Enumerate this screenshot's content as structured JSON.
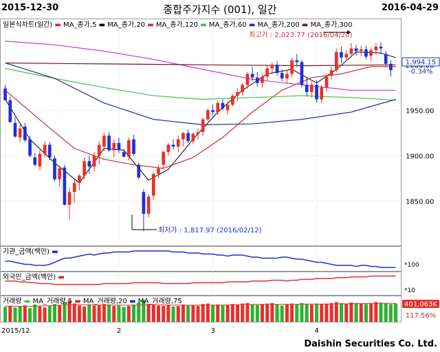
{
  "header": {
    "start_date": "2015-12-30",
    "end_date": "2016-04-29",
    "title": "종합주가지수 (001), 일간"
  },
  "footer": {
    "company": "Daishin Securities Co. Ltd."
  },
  "colors": {
    "up": "#e8302a",
    "down": "#1f2fd8",
    "ma5": "#000000",
    "ma20": "#d22b2b",
    "ma60": "#39c83c",
    "ma120": "#1c30a8",
    "ma200": "#d42fd3",
    "ma300": "#7a1a1a",
    "volume_up": "#e8302a",
    "volume_down": "#29b52e"
  },
  "price_panel": {
    "legend": [
      "일본식차트(일간)",
      "MA_종가,5",
      "MA_종가,20",
      "MA_종가,120",
      "MA_종가,60",
      "MA_종가,200",
      "MA_종가,300"
    ],
    "max_label": "최고가 : 2,023.77 (2016/04/20)",
    "min_label": "최저가 : 1,817.97 (2016/02/12)",
    "current_value": "1,994.15",
    "change_pct": "-0.34%"
  },
  "inst_panel": {
    "label": "기관_금액(백만)",
    "tick": "*100"
  },
  "foreign_panel": {
    "label": "외국인_금액(백만)",
    "tick": "*10"
  },
  "volume_panel": {
    "legend": [
      "거래량",
      "MA_거래량,5",
      "MA_거래량,20",
      "MA_거래량,75"
    ],
    "current_value": "401,063K",
    "ratio": "117.56%"
  },
  "chart_data": {
    "type": "candlestick",
    "title": "종합주가지수 (001), 일간",
    "y_ticks": [
      1850,
      1900,
      1950,
      2000
    ],
    "ylim": [
      1805,
      2035
    ],
    "x_tick_labels": [
      "2015/12",
      "2",
      "3",
      "4"
    ],
    "x_tick_index": [
      0,
      23,
      42,
      63
    ],
    "candles": [
      [
        1974,
        1978,
        1962,
        1961
      ],
      [
        1961,
        1965,
        1936,
        1937
      ],
      [
        1936,
        1942,
        1920,
        1921
      ],
      [
        1920,
        1935,
        1915,
        1930
      ],
      [
        1932,
        1936,
        1915,
        1917
      ],
      [
        1918,
        1922,
        1898,
        1900
      ],
      [
        1898,
        1903,
        1888,
        1890
      ],
      [
        1888,
        1906,
        1884,
        1902
      ],
      [
        1902,
        1916,
        1898,
        1912
      ],
      [
        1912,
        1915,
        1895,
        1898
      ],
      [
        1897,
        1900,
        1872,
        1874
      ],
      [
        1874,
        1889,
        1866,
        1886
      ],
      [
        1887,
        1890,
        1845,
        1846
      ],
      [
        1846,
        1865,
        1829,
        1860
      ],
      [
        1860,
        1874,
        1848,
        1870
      ],
      [
        1870,
        1880,
        1862,
        1878
      ],
      [
        1878,
        1898,
        1874,
        1894
      ],
      [
        1894,
        1900,
        1880,
        1888
      ],
      [
        1888,
        1904,
        1882,
        1900
      ],
      [
        1900,
        1916,
        1890,
        1912
      ],
      [
        1910,
        1925,
        1905,
        1922
      ],
      [
        1922,
        1926,
        1904,
        1906
      ],
      [
        1906,
        1918,
        1898,
        1914
      ],
      [
        1914,
        1920,
        1903,
        1906
      ],
      [
        1904,
        1907,
        1898,
        1899
      ],
      [
        1899,
        1920,
        1895,
        1917
      ],
      [
        1918,
        1923,
        1900,
        1902
      ],
      [
        1890,
        1892,
        1874,
        1876
      ],
      [
        1860,
        1863,
        1817,
        1836
      ],
      [
        1836,
        1858,
        1832,
        1855
      ],
      [
        1856,
        1882,
        1852,
        1880
      ],
      [
        1880,
        1890,
        1875,
        1886
      ],
      [
        1890,
        1906,
        1886,
        1904
      ],
      [
        1904,
        1914,
        1900,
        1912
      ],
      [
        1912,
        1918,
        1907,
        1910
      ],
      [
        1910,
        1922,
        1904,
        1918
      ],
      [
        1918,
        1926,
        1910,
        1925
      ],
      [
        1925,
        1929,
        1914,
        1916
      ],
      [
        1916,
        1926,
        1913,
        1924
      ],
      [
        1924,
        1930,
        1918,
        1926
      ],
      [
        1926,
        1942,
        1922,
        1940
      ],
      [
        1940,
        1952,
        1938,
        1950
      ],
      [
        1950,
        1956,
        1944,
        1948
      ],
      [
        1948,
        1960,
        1945,
        1958
      ],
      [
        1958,
        1962,
        1950,
        1952
      ],
      [
        1950,
        1960,
        1945,
        1956
      ],
      [
        1956,
        1968,
        1954,
        1966
      ],
      [
        1966,
        1974,
        1960,
        1970
      ],
      [
        1970,
        1980,
        1966,
        1978
      ],
      [
        1978,
        1992,
        1974,
        1990
      ],
      [
        1990,
        1998,
        1982,
        1986
      ],
      [
        1986,
        1992,
        1976,
        1980
      ],
      [
        1980,
        1990,
        1975,
        1987
      ],
      [
        1987,
        2000,
        1982,
        1996
      ],
      [
        1996,
        2003,
        1990,
        2000
      ],
      [
        2000,
        2004,
        1988,
        1991
      ],
      [
        1991,
        1995,
        1982,
        1985
      ],
      [
        1985,
        1994,
        1980,
        1990
      ],
      [
        1990,
        2008,
        1986,
        2005
      ],
      [
        2005,
        2012,
        1998,
        2003
      ],
      [
        2003,
        2005,
        1975,
        1978
      ],
      [
        1978,
        1985,
        1965,
        1970
      ],
      [
        1970,
        1982,
        1964,
        1978
      ],
      [
        1978,
        1983,
        1958,
        1962
      ],
      [
        1962,
        1978,
        1958,
        1975
      ],
      [
        1975,
        1990,
        1970,
        1987
      ],
      [
        1988,
        1998,
        1984,
        1994
      ],
      [
        1994,
        2018,
        1992,
        2014
      ],
      [
        2014,
        2020,
        2002,
        2008
      ],
      [
        2008,
        2016,
        2004,
        2012
      ],
      [
        2012,
        2024,
        2008,
        2018
      ],
      [
        2018,
        2022,
        2010,
        2015
      ],
      [
        2015,
        2021,
        2009,
        2017
      ],
      [
        2017,
        2021,
        2006,
        2009
      ],
      [
        2010,
        2019,
        2004,
        2016
      ],
      [
        2016,
        2024,
        2011,
        2020
      ],
      [
        2020,
        2025,
        2012,
        2018
      ],
      [
        2012,
        2015,
        1998,
        2001
      ],
      [
        2001,
        2005,
        1987,
        1994
      ]
    ],
    "ma_series": [
      {
        "name": "MA_종가,5",
        "color_key": "ma5",
        "points": [
          [
            0,
            1962
          ],
          [
            5,
            1918
          ],
          [
            10,
            1892
          ],
          [
            15,
            1870
          ],
          [
            20,
            1908
          ],
          [
            24,
            1906
          ],
          [
            29,
            1873
          ],
          [
            33,
            1885
          ],
          [
            38,
            1918
          ],
          [
            43,
            1948
          ],
          [
            48,
            1972
          ],
          [
            53,
            1990
          ],
          [
            58,
            1995
          ],
          [
            63,
            1980
          ],
          [
            67,
            1995
          ],
          [
            71,
            2014
          ],
          [
            76,
            2013
          ],
          [
            79,
            2008
          ]
        ]
      },
      {
        "name": "MA_종가,20",
        "color_key": "ma20",
        "points": [
          [
            0,
            1972
          ],
          [
            8,
            1935
          ],
          [
            14,
            1908
          ],
          [
            20,
            1896
          ],
          [
            26,
            1890
          ],
          [
            32,
            1886
          ],
          [
            38,
            1898
          ],
          [
            44,
            1920
          ],
          [
            50,
            1948
          ],
          [
            56,
            1972
          ],
          [
            62,
            1986
          ],
          [
            68,
            1990
          ],
          [
            74,
            1998
          ],
          [
            79,
            1998
          ]
        ]
      },
      {
        "name": "MA_종가,60",
        "color_key": "ma60",
        "points": [
          [
            0,
            1996
          ],
          [
            10,
            1985
          ],
          [
            20,
            1975
          ],
          [
            30,
            1966
          ],
          [
            40,
            1962
          ],
          [
            50,
            1964
          ],
          [
            60,
            1966
          ],
          [
            70,
            1964
          ],
          [
            79,
            1961
          ]
        ]
      },
      {
        "name": "MA_종가,120",
        "color_key": "ma120",
        "points": [
          [
            0,
            2002
          ],
          [
            10,
            1985
          ],
          [
            20,
            1958
          ],
          [
            30,
            1940
          ],
          [
            40,
            1934
          ],
          [
            50,
            1935
          ],
          [
            60,
            1940
          ],
          [
            70,
            1948
          ],
          [
            79,
            1962
          ]
        ]
      },
      {
        "name": "MA_종가,200",
        "color_key": "ma200",
        "points": [
          [
            0,
            2026
          ],
          [
            10,
            2022
          ],
          [
            20,
            2015
          ],
          [
            30,
            2006
          ],
          [
            40,
            1995
          ],
          [
            50,
            1984
          ],
          [
            60,
            1978
          ],
          [
            70,
            1972
          ],
          [
            79,
            1972
          ]
        ]
      },
      {
        "name": "MA_종가,300",
        "color_key": "ma300",
        "points": [
          [
            0,
            2002
          ],
          [
            20,
            2001
          ],
          [
            40,
            2000
          ],
          [
            60,
            1999
          ],
          [
            79,
            2000
          ]
        ]
      }
    ],
    "institution_series": [
      8,
      8,
      7,
      6,
      5,
      5,
      4,
      4,
      4,
      5,
      7,
      9,
      11,
      11,
      12,
      13,
      14,
      15,
      14,
      15,
      16,
      16,
      17,
      17,
      17,
      17,
      18,
      18,
      18,
      18,
      18,
      18,
      18,
      18,
      17,
      17,
      17,
      16,
      16,
      16,
      15,
      15,
      15,
      14,
      14,
      13,
      14,
      14,
      14,
      13,
      12,
      12,
      11,
      11,
      11,
      11,
      12,
      12,
      11,
      10,
      10,
      9,
      8,
      7,
      7,
      6,
      5,
      4,
      4,
      4,
      4,
      3,
      4,
      4,
      3,
      3,
      2,
      2,
      2,
      2
    ],
    "foreign_series": [
      14,
      14,
      14,
      13,
      13,
      12,
      12,
      11,
      11,
      11,
      10,
      10,
      10,
      10,
      10,
      10,
      10,
      10,
      10,
      10,
      11,
      11,
      11,
      11,
      11,
      11,
      12,
      12,
      12,
      12,
      12,
      12,
      11,
      11,
      11,
      11,
      11,
      11,
      12,
      12,
      12,
      12,
      12,
      12,
      12,
      13,
      13,
      13,
      13,
      13,
      14,
      14,
      14,
      14,
      15,
      15,
      15,
      14,
      15,
      15,
      16,
      16,
      16,
      17,
      17,
      17,
      17,
      18,
      18,
      18,
      19,
      19,
      19,
      19,
      20,
      20,
      20,
      20,
      20,
      20
    ],
    "volume_bars": [
      [
        60,
        0
      ],
      [
        64,
        1
      ],
      [
        58,
        0
      ],
      [
        62,
        0
      ],
      [
        66,
        1
      ],
      [
        55,
        0
      ],
      [
        70,
        0
      ],
      [
        62,
        1
      ],
      [
        58,
        1
      ],
      [
        65,
        0
      ],
      [
        72,
        0
      ],
      [
        68,
        1
      ],
      [
        80,
        0
      ],
      [
        85,
        1
      ],
      [
        74,
        1
      ],
      [
        66,
        1
      ],
      [
        62,
        1
      ],
      [
        70,
        0
      ],
      [
        65,
        1
      ],
      [
        68,
        1
      ],
      [
        72,
        1
      ],
      [
        70,
        0
      ],
      [
        64,
        1
      ],
      [
        66,
        0
      ],
      [
        60,
        0
      ],
      [
        64,
        1
      ],
      [
        70,
        0
      ],
      [
        78,
        0
      ],
      [
        88,
        0
      ],
      [
        72,
        1
      ],
      [
        70,
        1
      ],
      [
        66,
        1
      ],
      [
        65,
        1
      ],
      [
        68,
        1
      ],
      [
        62,
        0
      ],
      [
        64,
        1
      ],
      [
        70,
        1
      ],
      [
        66,
        0
      ],
      [
        68,
        1
      ],
      [
        64,
        1
      ],
      [
        72,
        1
      ],
      [
        74,
        1
      ],
      [
        68,
        0
      ],
      [
        70,
        1
      ],
      [
        66,
        0
      ],
      [
        68,
        1
      ],
      [
        72,
        1
      ],
      [
        70,
        1
      ],
      [
        74,
        1
      ],
      [
        76,
        1
      ],
      [
        70,
        0
      ],
      [
        68,
        0
      ],
      [
        72,
        1
      ],
      [
        74,
        1
      ],
      [
        76,
        1
      ],
      [
        70,
        0
      ],
      [
        66,
        0
      ],
      [
        70,
        1
      ],
      [
        74,
        1
      ],
      [
        72,
        0
      ],
      [
        76,
        0
      ],
      [
        72,
        0
      ],
      [
        70,
        1
      ],
      [
        74,
        0
      ],
      [
        72,
        1
      ],
      [
        74,
        1
      ],
      [
        76,
        1
      ],
      [
        80,
        1
      ],
      [
        76,
        0
      ],
      [
        74,
        1
      ],
      [
        78,
        1
      ],
      [
        76,
        0
      ],
      [
        74,
        1
      ],
      [
        72,
        0
      ],
      [
        76,
        1
      ],
      [
        80,
        1
      ],
      [
        78,
        0
      ],
      [
        76,
        0
      ],
      [
        72,
        0
      ],
      [
        74,
        0
      ]
    ],
    "volume_ma20": [
      64,
      64,
      63,
      63,
      63,
      63,
      64,
      64,
      65,
      65,
      66,
      67,
      68,
      69,
      69,
      69,
      69,
      69,
      68,
      68,
      68,
      68,
      68,
      68,
      67,
      67,
      67,
      68,
      69,
      70,
      70,
      69,
      69,
      68,
      68,
      68,
      68,
      67,
      67,
      67,
      68,
      68,
      68,
      68,
      68,
      68,
      69,
      69,
      70,
      70,
      70,
      70,
      70,
      71,
      71,
      71,
      71,
      71,
      71,
      71,
      72,
      72,
      72,
      72,
      72,
      72,
      72,
      73,
      73,
      73,
      73,
      74,
      74,
      74,
      74,
      75,
      75,
      75,
      75,
      75
    ]
  }
}
